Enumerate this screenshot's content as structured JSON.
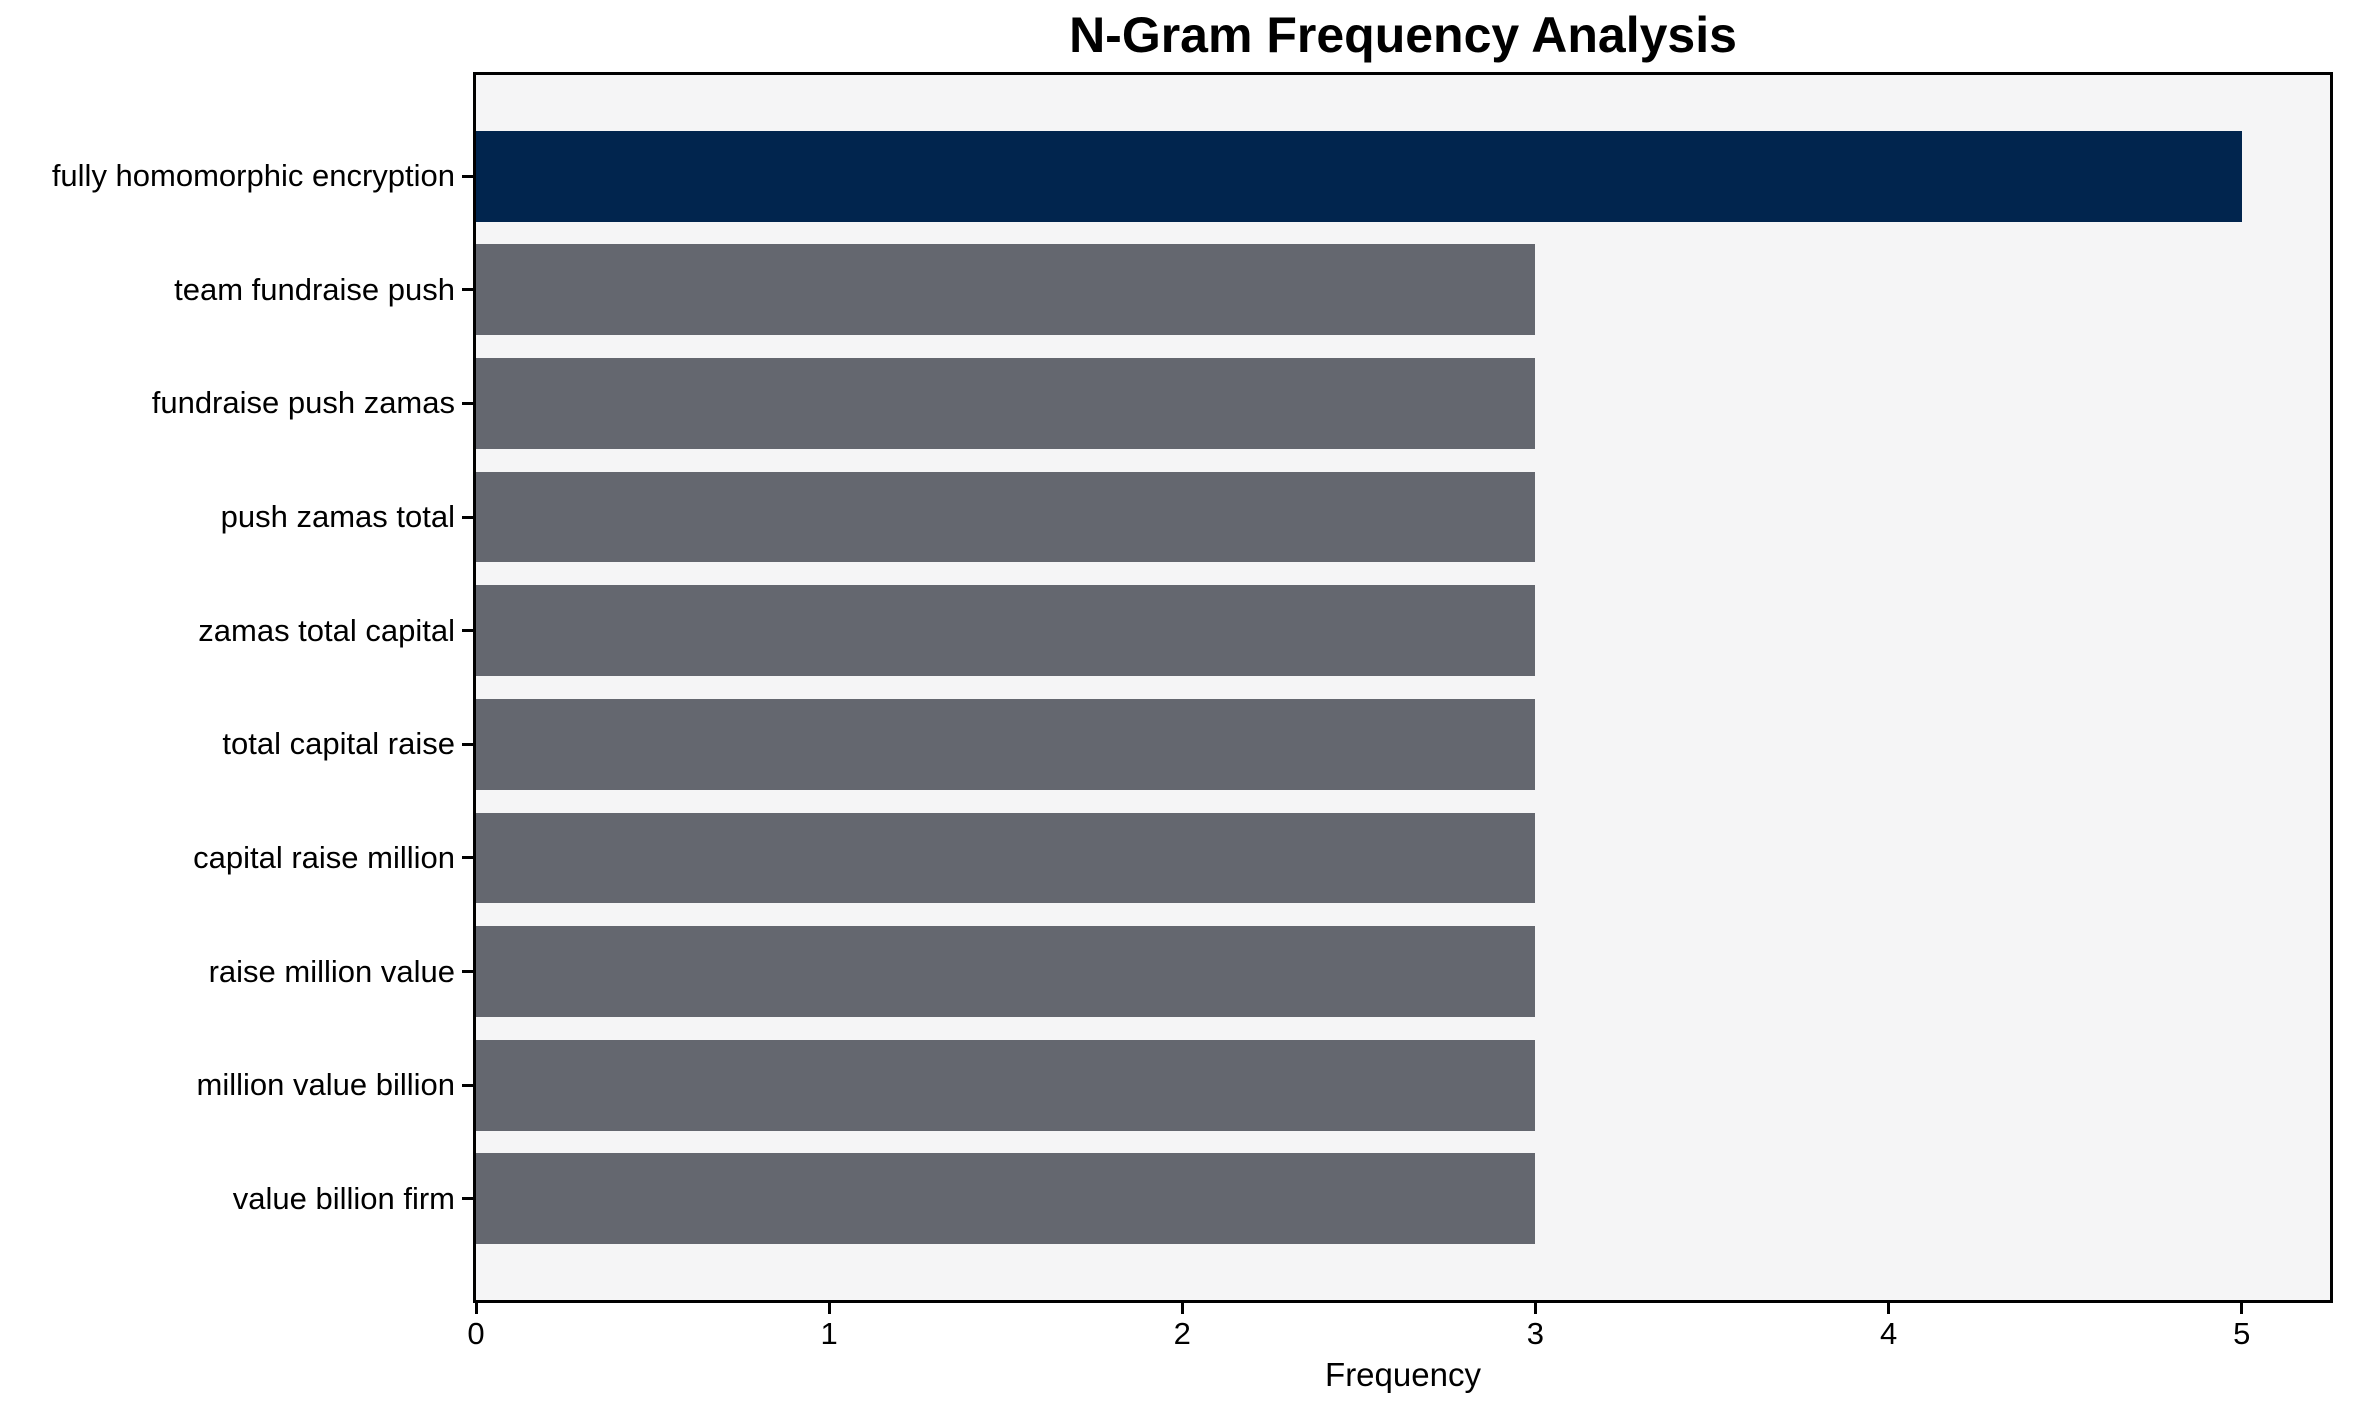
{
  "chart_data": {
    "type": "bar",
    "orientation": "horizontal",
    "title": "N-Gram Frequency Analysis",
    "xlabel": "Frequency",
    "ylabel": "",
    "categories": [
      "fully homomorphic encryption",
      "team fundraise push",
      "fundraise push zamas",
      "push zamas total",
      "zamas total capital",
      "total capital raise",
      "capital raise million",
      "raise million value",
      "million value billion",
      "value billion firm"
    ],
    "values": [
      5,
      3,
      3,
      3,
      3,
      3,
      3,
      3,
      3,
      3
    ],
    "bar_colors": [
      "#01254e",
      "#64676f",
      "#64676f",
      "#64676f",
      "#64676f",
      "#64676f",
      "#64676f",
      "#64676f",
      "#64676f",
      "#64676f"
    ],
    "xticks": [
      0,
      1,
      2,
      3,
      4,
      5
    ],
    "xlim": [
      0,
      5.25
    ],
    "grid": false,
    "legend_position": "none",
    "plot_background": "#f5f5f6",
    "figure_background": "#ffffff",
    "axis_color": "#000000",
    "text_color": "#000000"
  }
}
